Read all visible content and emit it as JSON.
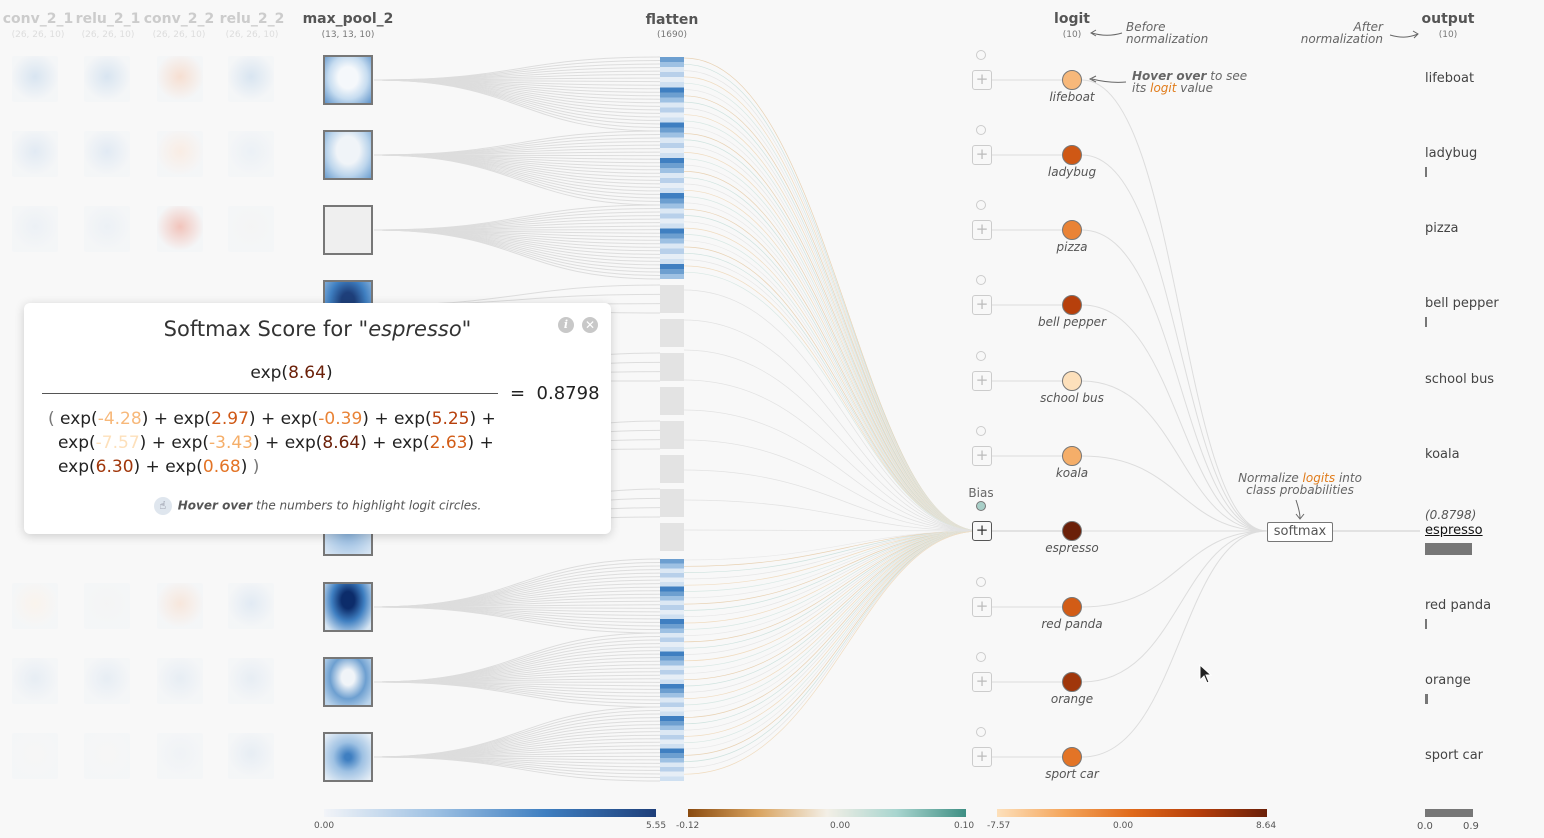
{
  "layers": {
    "conv_2_1": {
      "title": "conv_2_1",
      "dim": "(26, 26, 10)"
    },
    "relu_2_1": {
      "title": "relu_2_1",
      "dim": "(26, 26, 10)"
    },
    "conv_2_2": {
      "title": "conv_2_2",
      "dim": "(26, 26, 10)"
    },
    "relu_2_2": {
      "title": "relu_2_2",
      "dim": "(26, 26, 10)"
    },
    "max_pool_2": {
      "title": "max_pool_2",
      "dim": "(13, 13, 10)"
    },
    "flatten": {
      "title": "flatten",
      "dim": "(1690)"
    },
    "logit": {
      "title": "logit",
      "dim": "(10)"
    },
    "output": {
      "title": "output",
      "dim": "(10)"
    }
  },
  "notes": {
    "before_norm": [
      "Before",
      "normalization"
    ],
    "after_norm": [
      "After",
      "normalization"
    ],
    "hover_bold": "Hover over",
    "hover_rest1": " to see",
    "hover_its": "its ",
    "hover_logit": "logit",
    "hover_value": " value",
    "normalize_1": "Normalize ",
    "normalize_logits": "logits",
    "normalize_2": " into",
    "normalize_3": "class probabilities",
    "bias": "Bias",
    "softmax": "softmax"
  },
  "classes": [
    {
      "name": "lifeboat",
      "logit": "-4.28",
      "color": "#f4a55b",
      "prob_bar": 0
    },
    {
      "name": "ladybug",
      "logit": "2.97",
      "color": "#d95812",
      "prob_bar": 0.003
    },
    {
      "name": "pizza",
      "logit": "-0.39",
      "color": "#e97e2a",
      "prob_bar": 0
    },
    {
      "name": "bell pepper",
      "logit": "5.25",
      "color": "#b53e0b",
      "prob_bar": 0.022
    },
    {
      "name": "school bus",
      "logit": "-7.57",
      "color": "#fcd9ab",
      "prob_bar": 0
    },
    {
      "name": "koala",
      "logit": "-3.43",
      "color": "#f4a55b",
      "prob_bar": 0
    },
    {
      "name": "espresso",
      "logit": "8.64",
      "color": "#6b2009",
      "prob_bar": 0.8798
    },
    {
      "name": "red panda",
      "logit": "2.63",
      "color": "#d95812",
      "prob_bar": 0.002
    },
    {
      "name": "orange",
      "logit": "6.30",
      "color": "#8e300a",
      "prob_bar": 0.064
    },
    {
      "name": "sport car",
      "logit": "0.68",
      "color": "#e86a1c",
      "prob_bar": 0
    }
  ],
  "selected_output": {
    "name": "espresso",
    "prob_label": "(0.8798)"
  },
  "modal": {
    "title_prefix": "Softmax Score for ",
    "title_class": "\"espresso\"",
    "numerator_value": "8.64",
    "equals": "=",
    "result": "0.8798",
    "hint_bold": "Hover over",
    "hint_rest": " the numbers to highlight logit circles."
  },
  "legends": {
    "maxpool": {
      "min": "0.00",
      "max": "5.55"
    },
    "weights": {
      "min": "-0.12",
      "mid": "0.00",
      "max": "0.10"
    },
    "logit": {
      "min": "-7.57",
      "mid": "0.00",
      "max": "8.64"
    },
    "output": {
      "min": "0.0",
      "max": "0.9"
    }
  },
  "colors": {
    "blue_dark": "#1e3f7a",
    "orange_dark": "#6b2009",
    "teal": "#4a9a8e"
  }
}
